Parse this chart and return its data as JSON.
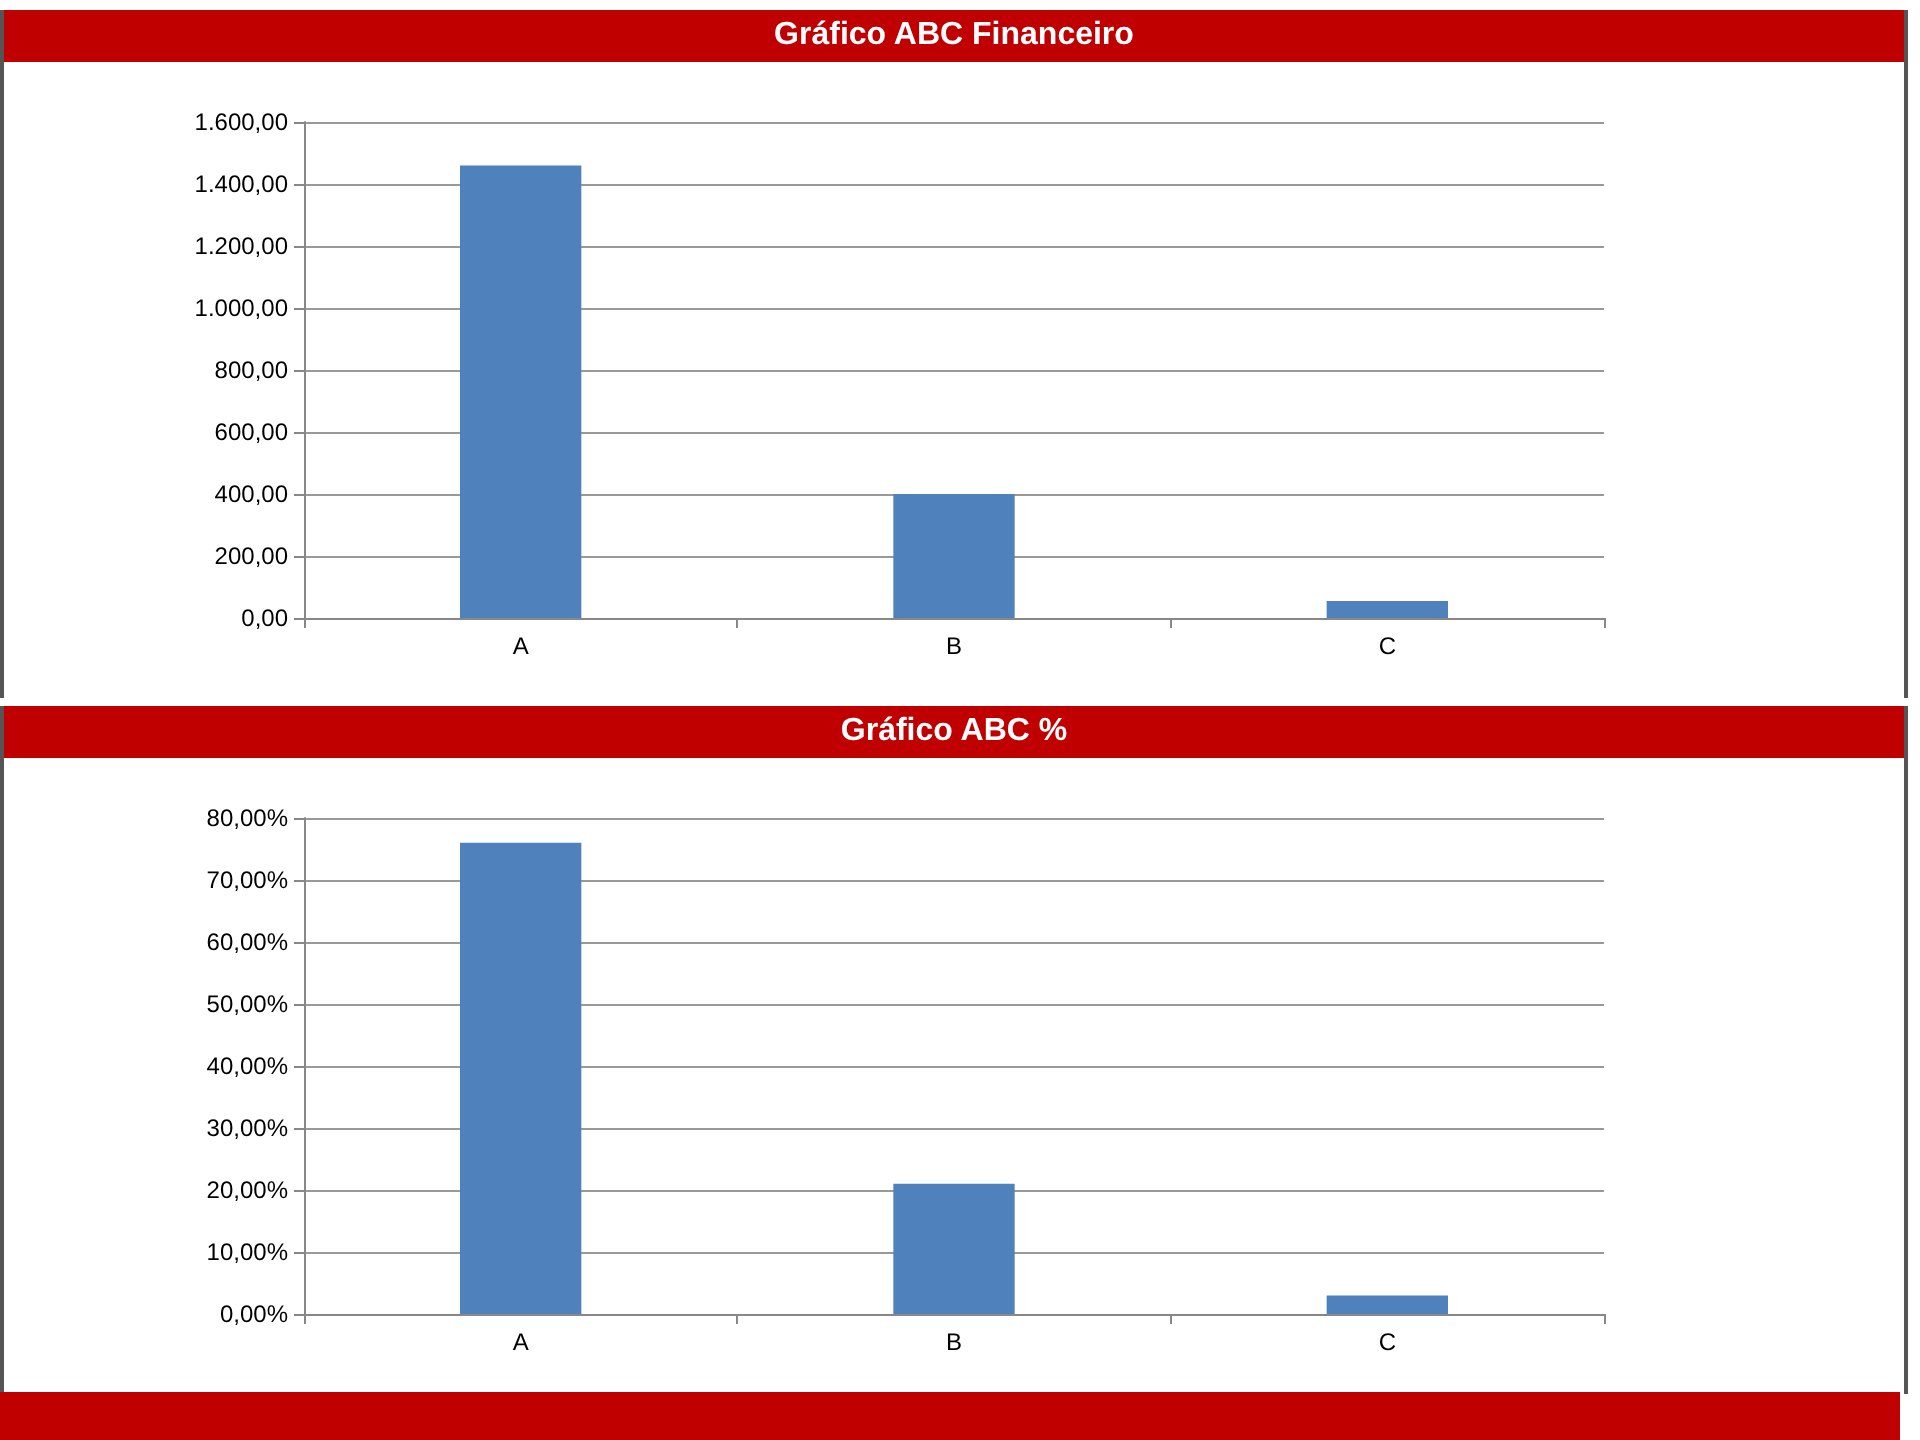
{
  "chart_data": [
    {
      "type": "bar",
      "title": "Gráfico ABC Financeiro",
      "categories": [
        "A",
        "B",
        "C"
      ],
      "values": [
        1460,
        400,
        55
      ],
      "color": "#4f81bd",
      "ylim": [
        0,
        1600
      ],
      "yticks": [
        {
          "value": 0,
          "label": "0,00"
        },
        {
          "value": 200,
          "label": "200,00"
        },
        {
          "value": 400,
          "label": "400,00"
        },
        {
          "value": 600,
          "label": "600,00"
        },
        {
          "value": 800,
          "label": "800,00"
        },
        {
          "value": 1000,
          "label": "1.000,00"
        },
        {
          "value": 1200,
          "label": "1.200,00"
        },
        {
          "value": 1400,
          "label": "1.400,00"
        },
        {
          "value": 1600,
          "label": "1.600,00"
        }
      ],
      "grid": "y"
    },
    {
      "type": "bar",
      "title": "Gráfico ABC %",
      "categories": [
        "A",
        "B",
        "C"
      ],
      "values": [
        76,
        21,
        3
      ],
      "color": "#4f81bd",
      "ylim": [
        0,
        80
      ],
      "yticks": [
        {
          "value": 0,
          "label": "0,00%"
        },
        {
          "value": 10,
          "label": "10,00%"
        },
        {
          "value": 20,
          "label": "20,00%"
        },
        {
          "value": 30,
          "label": "30,00%"
        },
        {
          "value": 40,
          "label": "40,00%"
        },
        {
          "value": 50,
          "label": "50,00%"
        },
        {
          "value": 60,
          "label": "60,00%"
        },
        {
          "value": 70,
          "label": "70,00%"
        },
        {
          "value": 80,
          "label": "80,00%"
        }
      ],
      "grid": "y"
    }
  ]
}
